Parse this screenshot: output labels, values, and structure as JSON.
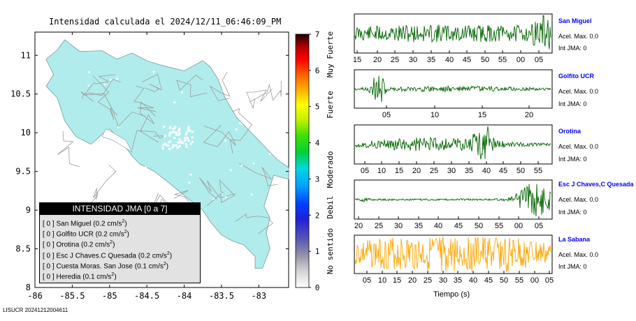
{
  "title": "Intensidad calculada el 2024/12/11_06:46:09_PM",
  "footer_id": "LISUCR 20241212004611",
  "map": {
    "xlim": [
      -86,
      -82.6
    ],
    "ylim": [
      8,
      11.3
    ],
    "x_ticks": [
      "-86",
      "-85.5",
      "-85",
      "-84.5",
      "-84",
      "-83.5",
      "-83"
    ],
    "y_ticks": [
      "11",
      "10.5",
      "10",
      "9.5",
      "9",
      "8.5",
      "8"
    ],
    "land_color": "#b1ecec",
    "road_color": "#9a9a9a"
  },
  "colorbar": {
    "ticks": [
      "0",
      "1",
      "2",
      "3",
      "4",
      "5",
      "6",
      "7"
    ],
    "categories": [
      "No sentido",
      "Debil",
      "Moderado",
      "Fuerte",
      "Muy Fuerte"
    ]
  },
  "legend": {
    "title": "INTENSIDAD JMA [0 a 7]",
    "items": [
      {
        "intensity": "[ 0 ]",
        "name": "San Miguel",
        "accel": "(0.2 cm/s",
        "exp": "2",
        "close": ")"
      },
      {
        "intensity": "[ 0 ]",
        "name": "Golfito UCR",
        "accel": "(0.2 cm/s",
        "exp": "2",
        "close": ")"
      },
      {
        "intensity": "[ 0 ]",
        "name": "Orotina",
        "accel": "(0.2 cm/s",
        "exp": "2",
        "close": ")"
      },
      {
        "intensity": "[ 0 ]",
        "name": "Esc J Chaves.C Quesada",
        "accel": "(0.2 cm/s",
        "exp": "2",
        "close": ")"
      },
      {
        "intensity": "[ 0 ]",
        "name": "Cuesta Moras. San Jose",
        "accel": "(0.1 cm/s",
        "exp": "2",
        "close": ")"
      },
      {
        "intensity": "[ 0 ]",
        "name": "Heredia",
        "accel": "(0.1 cm/s",
        "exp": "2",
        "close": ")"
      }
    ]
  },
  "xaxis_title": "Tiempo (s)",
  "chart_data": {
    "type": "line",
    "title": "",
    "xlabel": "Tiempo (s)",
    "series": [
      {
        "name": "San Miguel",
        "accel_label": "Acel. Max. 0.0",
        "int_label": "Int JMA: 0",
        "color": "#006400",
        "tick_labels": [
          "15",
          "20",
          "25",
          "30",
          "35",
          "40",
          "45",
          "50",
          "55",
          "00",
          "05"
        ]
      },
      {
        "name": "Golfito UCR",
        "accel_label": "Acel. Max. 0.0",
        "int_label": "Int JMA: 0",
        "color": "#006400",
        "tick_labels": [
          "05",
          "10",
          "15",
          "20"
        ]
      },
      {
        "name": "Orotina",
        "accel_label": "Acel. Max. 0.0",
        "int_label": "Int JMA: 0",
        "color": "#006400",
        "tick_labels": [
          "05",
          "10",
          "15",
          "20",
          "25",
          "30",
          "35",
          "40",
          "45",
          "50",
          "55",
          "00",
          "05"
        ]
      },
      {
        "name": "Esc J Chaves,C Quesada",
        "accel_label": "Acel. Max. 0.0",
        "int_label": "Int JMA: 0",
        "color": "#006400",
        "tick_labels": [
          "20",
          "25",
          "30",
          "35",
          "40",
          "45",
          "50",
          "55",
          "00",
          "05"
        ]
      },
      {
        "name": "La Sabana",
        "accel_label": "Acel. Max. 0.0",
        "int_label": "Int JMA: 0",
        "color": "#ffa500",
        "tick_labels": [
          "05",
          "10",
          "15",
          "20",
          "25",
          "30",
          "35",
          "40",
          "45",
          "50",
          "55",
          "00",
          "05"
        ]
      }
    ]
  }
}
